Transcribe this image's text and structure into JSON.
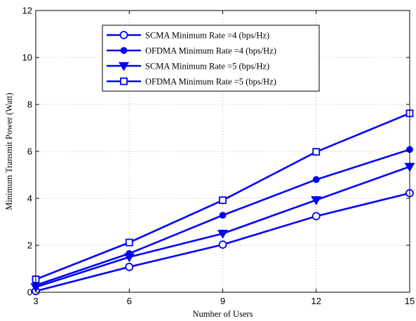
{
  "chart_data": {
    "type": "line",
    "xlabel": "Number of Users",
    "ylabel": "Minimum Transmit Power (Watt)",
    "x": [
      3,
      6,
      9,
      12,
      15
    ],
    "xlim": [
      3,
      15
    ],
    "ylim": [
      0,
      12
    ],
    "xticks": [
      "3",
      "6",
      "9",
      "12",
      "15"
    ],
    "yticks": [
      "0",
      "2",
      "4",
      "6",
      "8",
      "10",
      "12"
    ],
    "grid": true,
    "legend_position": "top-left",
    "line_color": "#0000ff",
    "series": [
      {
        "name": "SCMA Minimum Rate =4 (bps/Hz)",
        "marker": "circle-open",
        "values": [
          0.05,
          1.08,
          2.03,
          3.24,
          4.22
        ]
      },
      {
        "name": "OFDMA Minimum Rate =4 (bps/Hz)",
        "marker": "circle-filled",
        "values": [
          0.3,
          1.65,
          3.28,
          4.8,
          6.08
        ]
      },
      {
        "name": "SCMA Minimum Rate =5 (bps/Hz)",
        "marker": "triangle-down",
        "values": [
          0.22,
          1.5,
          2.5,
          3.93,
          5.35
        ]
      },
      {
        "name": "OFDMA Minimum Rate =5 (bps/Hz)",
        "marker": "square-open",
        "values": [
          0.55,
          2.12,
          3.92,
          5.98,
          7.62
        ]
      }
    ]
  }
}
